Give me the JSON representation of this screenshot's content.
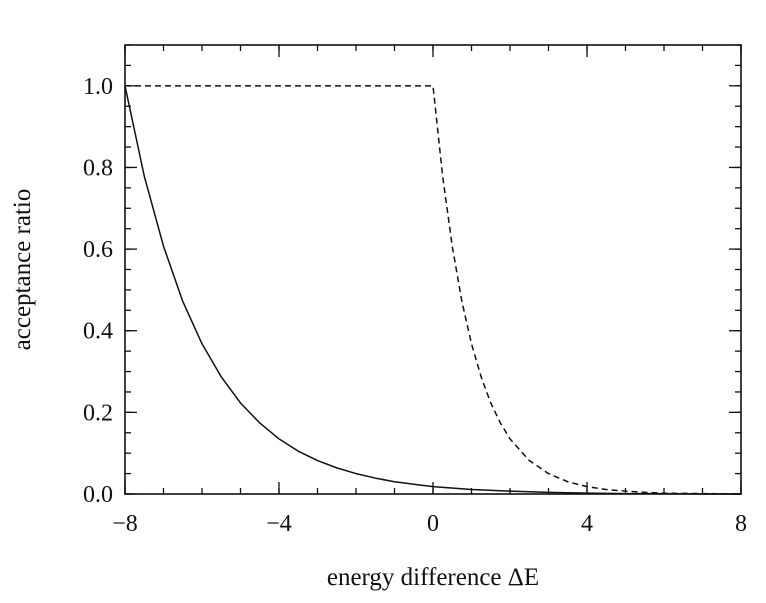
{
  "chart_data": {
    "type": "line",
    "xlabel": "energy difference ΔE",
    "ylabel": "acceptance ratio",
    "xlim": [
      -8,
      8
    ],
    "ylim": [
      0,
      1.1
    ],
    "grid": false,
    "legend": "none",
    "x_ticks": [
      -8,
      -4,
      0,
      4,
      8
    ],
    "x_tick_labels": [
      "−8",
      "−4",
      "0",
      "4",
      "8"
    ],
    "y_ticks": [
      0,
      0.2,
      0.4,
      0.6,
      0.8,
      1.0
    ],
    "y_tick_labels": [
      "0.0",
      "0.2",
      "0.4",
      "0.6",
      "0.8",
      "1.0"
    ],
    "series": [
      {
        "style": "solid",
        "color": "#111111",
        "x": [
          -8,
          -7.5,
          -7,
          -6.5,
          -6,
          -5.5,
          -5,
          -4.5,
          -4,
          -3.5,
          -3,
          -2.5,
          -2,
          -1.5,
          -1,
          -0.5,
          0,
          1,
          2,
          3,
          4,
          5,
          6,
          7,
          8
        ],
        "y": [
          1.0,
          0.779,
          0.607,
          0.472,
          0.368,
          0.287,
          0.223,
          0.174,
          0.135,
          0.105,
          0.082,
          0.064,
          0.05,
          0.039,
          0.03,
          0.024,
          0.018,
          0.011,
          0.007,
          0.004,
          0.002,
          0.001,
          0.001,
          0.0,
          0.0
        ]
      },
      {
        "style": "dashed",
        "color": "#111111",
        "x": [
          -8,
          0,
          0.25,
          0.5,
          0.75,
          1,
          1.25,
          1.5,
          1.75,
          2,
          2.5,
          3,
          3.5,
          4,
          4.5,
          5,
          5.5,
          6,
          7,
          8
        ],
        "y": [
          1.0,
          1.0,
          0.779,
          0.607,
          0.472,
          0.368,
          0.287,
          0.223,
          0.174,
          0.135,
          0.082,
          0.05,
          0.03,
          0.018,
          0.011,
          0.007,
          0.004,
          0.002,
          0.001,
          0.0
        ]
      }
    ]
  }
}
